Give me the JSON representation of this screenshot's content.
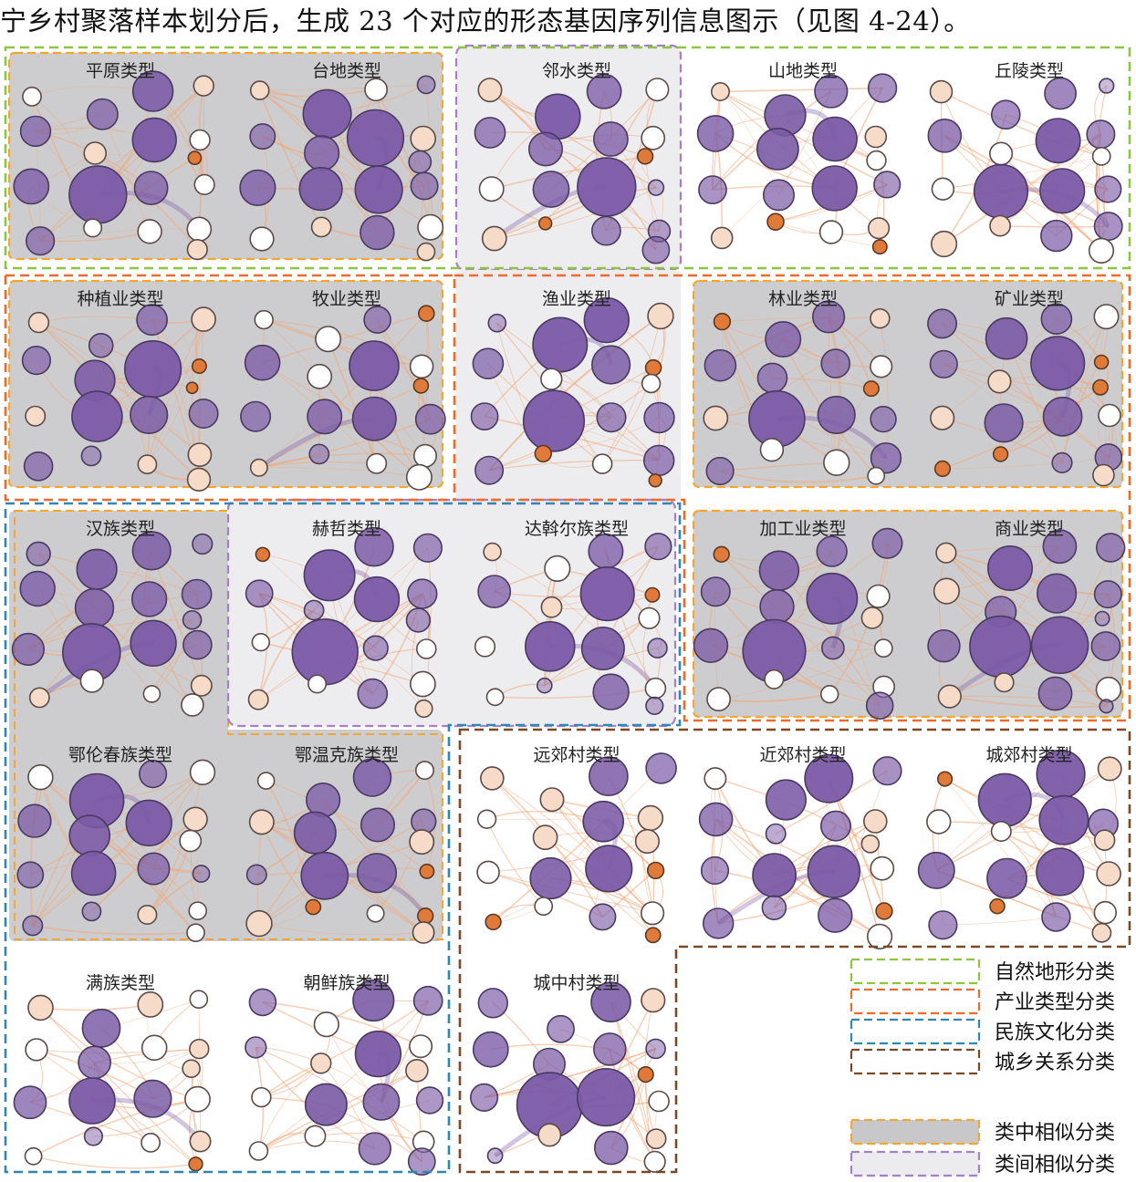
{
  "caption": "宁乡村聚落样本划分后，生成 23 个对应的形态基因序列信息图示（见图 4-24）。",
  "panels": [
    {
      "title": "平原类型"
    },
    {
      "title": "台地类型"
    },
    {
      "title": "邻水类型"
    },
    {
      "title": "山地类型"
    },
    {
      "title": "丘陵类型"
    },
    {
      "title": "种植业类型"
    },
    {
      "title": "牧业类型"
    },
    {
      "title": "渔业类型"
    },
    {
      "title": "林业类型"
    },
    {
      "title": "矿业类型"
    },
    {
      "title": "汉族类型"
    },
    {
      "title": "赫哲类型"
    },
    {
      "title": "达斡尔族类型"
    },
    {
      "title": "加工业类型"
    },
    {
      "title": "商业类型"
    },
    {
      "title": "鄂伦春族类型"
    },
    {
      "title": "鄂温克族类型"
    },
    {
      "title": "远郊村类型"
    },
    {
      "title": "近郊村类型"
    },
    {
      "title": "城郊村类型"
    },
    {
      "title": "满族类型"
    },
    {
      "title": "朝鲜族类型"
    },
    {
      "title": "城中村类型"
    }
  ],
  "legend": [
    {
      "label": "自然地形分类",
      "color": "#8cc63f",
      "fill": "none"
    },
    {
      "label": "产业类型分类",
      "color": "#ee6a2a",
      "fill": "none"
    },
    {
      "label": "民族文化分类",
      "color": "#2f87b5",
      "fill": "none"
    },
    {
      "label": "城乡关系分类",
      "color": "#7a4a26",
      "fill": "none"
    },
    {
      "label": "类中相似分类",
      "color": "#f3a630",
      "fill": "#c8c8ca"
    },
    {
      "label": "类间相似分类",
      "color": "#a77fc7",
      "fill": "#ececee"
    }
  ],
  "colors": {
    "terrain": "#8cc63f",
    "industry": "#ee6a2a",
    "ethnic": "#2f87b5",
    "urban": "#7a4a26",
    "intra": "#f3a630",
    "inter": "#a77fc7",
    "node_purple": "#7b5aa6",
    "node_orange": "#e07a3a",
    "edge": "#f0a878"
  }
}
